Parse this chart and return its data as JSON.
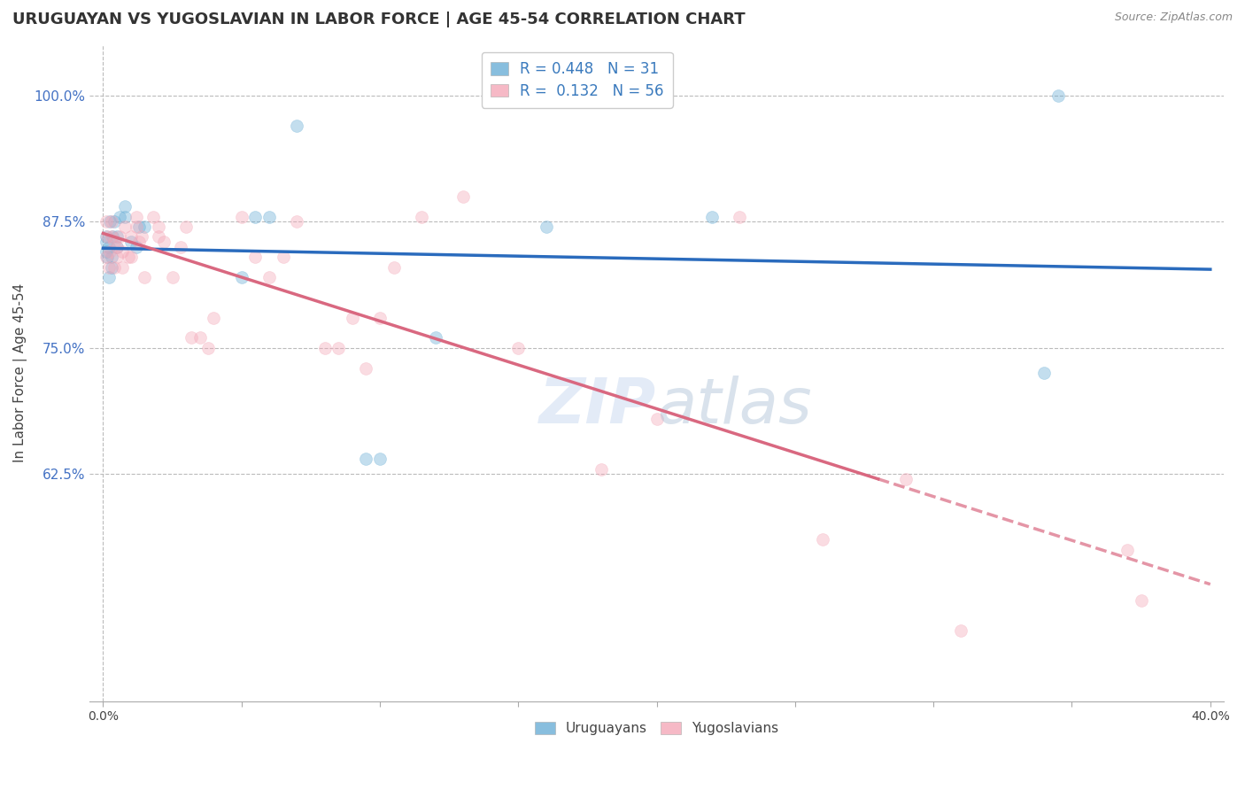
{
  "title": "URUGUAYAN VS YUGOSLAVIAN IN LABOR FORCE | AGE 45-54 CORRELATION CHART",
  "source": "Source: ZipAtlas.com",
  "ylabel": "In Labor Force | Age 45-54",
  "xlim": [
    -0.5,
    40.5
  ],
  "ylim": [
    0.4,
    1.05
  ],
  "ytick_positions": [
    0.625,
    0.75,
    0.875,
    1.0
  ],
  "ytick_labels": [
    "62.5%",
    "75.0%",
    "87.5%",
    "100.0%"
  ],
  "uruguayan_color": "#6aaed6",
  "yugoslavian_color": "#f4a8b8",
  "uruguayan_line_color": "#2a6bbd",
  "yugoslavian_line_color": "#d96880",
  "legend_R_uruguayan": "0.448",
  "legend_N_uruguayan": "31",
  "legend_R_yugoslavian": "0.132",
  "legend_N_yugoslavian": "56",
  "uruguayan_x": [
    0.1,
    0.1,
    0.1,
    0.15,
    0.2,
    0.2,
    0.25,
    0.3,
    0.3,
    0.35,
    0.4,
    0.5,
    0.5,
    0.6,
    0.8,
    0.8,
    1.0,
    1.2,
    1.3,
    1.5,
    5.0,
    5.5,
    6.0,
    7.0,
    9.5,
    10.0,
    12.0,
    16.0,
    22.0,
    34.0,
    34.5
  ],
  "uruguayan_y": [
    0.845,
    0.855,
    0.86,
    0.84,
    0.82,
    0.85,
    0.875,
    0.83,
    0.84,
    0.86,
    0.875,
    0.85,
    0.86,
    0.88,
    0.89,
    0.88,
    0.855,
    0.85,
    0.87,
    0.87,
    0.82,
    0.88,
    0.88,
    0.97,
    0.64,
    0.64,
    0.76,
    0.87,
    0.88,
    0.725,
    1.0
  ],
  "yugoslavian_x": [
    0.1,
    0.1,
    0.15,
    0.2,
    0.25,
    0.3,
    0.3,
    0.4,
    0.4,
    0.5,
    0.5,
    0.6,
    0.7,
    0.7,
    0.8,
    0.9,
    1.0,
    1.0,
    1.2,
    1.2,
    1.3,
    1.4,
    1.5,
    1.8,
    2.0,
    2.0,
    2.2,
    2.5,
    2.8,
    3.0,
    3.2,
    3.5,
    3.8,
    4.0,
    5.0,
    5.5,
    6.0,
    6.5,
    7.0,
    8.0,
    8.5,
    9.0,
    9.5,
    10.0,
    10.5,
    11.5,
    13.0,
    15.0,
    18.0,
    20.0,
    23.0,
    26.0,
    29.0,
    31.0,
    37.0,
    37.5
  ],
  "yugoslavian_y": [
    0.84,
    0.875,
    0.86,
    0.83,
    0.845,
    0.86,
    0.875,
    0.83,
    0.855,
    0.84,
    0.85,
    0.86,
    0.83,
    0.845,
    0.87,
    0.84,
    0.84,
    0.86,
    0.87,
    0.88,
    0.855,
    0.86,
    0.82,
    0.88,
    0.86,
    0.87,
    0.855,
    0.82,
    0.85,
    0.87,
    0.76,
    0.76,
    0.75,
    0.78,
    0.88,
    0.84,
    0.82,
    0.84,
    0.875,
    0.75,
    0.75,
    0.78,
    0.73,
    0.78,
    0.83,
    0.88,
    0.9,
    0.75,
    0.63,
    0.68,
    0.88,
    0.56,
    0.62,
    0.47,
    0.55,
    0.5
  ],
  "background_color": "#ffffff",
  "grid_color": "#bbbbbb",
  "title_fontsize": 13,
  "axis_label_fontsize": 11,
  "tick_fontsize": 10,
  "marker_size": 100,
  "marker_alpha": 0.4,
  "line_width": 2.5,
  "dashed_line_color": "#d96880"
}
